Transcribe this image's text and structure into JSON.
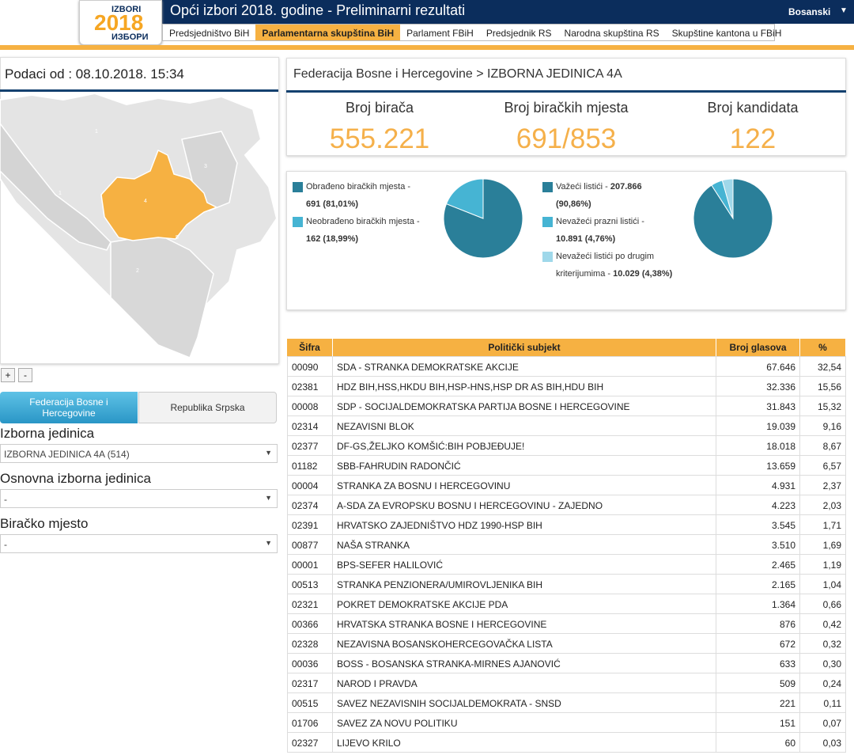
{
  "header": {
    "title": "Opći izbori 2018. godine - Preliminarni rezultati",
    "language": "Bosanski",
    "logo_top": "IZBORI",
    "logo_year": "2018",
    "logo_bottom": "ИЗБОРИ",
    "nav": [
      "Predsjedništvo BiH",
      "Parlamentarna skupština BiH",
      "Parlament FBiH",
      "Predsjednik RS",
      "Narodna skupština RS",
      "Skupštine kantona u FBiH"
    ],
    "active_nav": 1
  },
  "sidebar": {
    "date_label": "Podaci od : 08.10.2018. 15:34",
    "map_labels": [
      "1",
      "1",
      "3",
      "4",
      "5",
      "2"
    ],
    "zoom": [
      "+",
      "-"
    ],
    "entity_tabs": [
      "Federacija Bosne i Hercegovine",
      "Republika Srpska"
    ],
    "active_tab": 0,
    "filters": [
      {
        "label": "Izborna jedinica",
        "value": "IZBORNA JEDINICA 4A (514)"
      },
      {
        "label": "Osnovna izborna jedinica",
        "value": "-"
      },
      {
        "label": "Biračko mjesto",
        "value": "-"
      }
    ]
  },
  "region": {
    "breadcrumb": "Federacija Bosne i Hercegovine > IZBORNA JEDINICA 4A",
    "stats": [
      {
        "label": "Broj birača",
        "value": "555.221"
      },
      {
        "label": "Broj biračkih mjesta",
        "value": "691/853"
      },
      {
        "label": "Broj kandidata",
        "value": "122"
      }
    ]
  },
  "pies": [
    {
      "slices": [
        {
          "label": "Obrađeno biračkih mjesta - ",
          "value_text": "691 (81,01%)",
          "share": 81.01,
          "color": "#2a7f99"
        },
        {
          "label": "Neobrađeno biračkih mjesta - ",
          "value_text": "162 (18,99%)",
          "share": 18.99,
          "color": "#46b4d3"
        }
      ]
    },
    {
      "slices": [
        {
          "label": "Važeći listići - ",
          "value_text": "207.866 (90,86%)",
          "share": 90.86,
          "color": "#2a7f99"
        },
        {
          "label": "Nevažeći prazni listići - ",
          "value_text": "10.891 (4,76%)",
          "share": 4.76,
          "color": "#46b4d3"
        },
        {
          "label": "Nevažeći listići po drugim kriterijumima - ",
          "value_text": "10.029 (4,38%)",
          "share": 4.38,
          "color": "#9fd8ea"
        }
      ]
    }
  ],
  "table": {
    "header": [
      "Šifra",
      "Politički subjekt",
      "Broj glasova",
      "%"
    ],
    "rows": [
      [
        "00090",
        "SDA - STRANKA DEMOKRATSKE AKCIJE",
        "67.646",
        "32,54"
      ],
      [
        "02381",
        "HDZ BIH,HSS,HKDU BIH,HSP-HNS,HSP DR AS BIH,HDU BIH",
        "32.336",
        "15,56"
      ],
      [
        "00008",
        "SDP - SOCIJALDEMOKRATSKA PARTIJA BOSNE I HERCEGOVINE",
        "31.843",
        "15,32"
      ],
      [
        "02314",
        "NEZAVISNI BLOK",
        "19.039",
        "9,16"
      ],
      [
        "02377",
        "DF-GS,ŽELJKO KOMŠIĆ:BIH POBJEĐUJE!",
        "18.018",
        "8,67"
      ],
      [
        "01182",
        "SBB-FAHRUDIN RADONČIĆ",
        "13.659",
        "6,57"
      ],
      [
        "00004",
        "STRANKA ZA BOSNU I HERCEGOVINU",
        "4.931",
        "2,37"
      ],
      [
        "02374",
        "A-SDA ZA EVROPSKU BOSNU I HERCEGOVINU - ZAJEDNO",
        "4.223",
        "2,03"
      ],
      [
        "02391",
        "HRVATSKO ZAJEDNIŠTVO HDZ 1990-HSP BIH",
        "3.545",
        "1,71"
      ],
      [
        "00877",
        "NAŠA STRANKA",
        "3.510",
        "1,69"
      ],
      [
        "00001",
        "BPS-SEFER HALILOVIĆ",
        "2.465",
        "1,19"
      ],
      [
        "00513",
        "STRANKA PENZIONERA/UMIROVLJENIKA BIH",
        "2.165",
        "1,04"
      ],
      [
        "02321",
        "POKRET DEMOKRATSKE AKCIJE PDA",
        "1.364",
        "0,66"
      ],
      [
        "00366",
        "HRVATSKA STRANKA BOSNE I HERCEGOVINE",
        "876",
        "0,42"
      ],
      [
        "02328",
        "NEZAVISNA BOSANSKOHERCEGOVAČKA LISTA",
        "672",
        "0,32"
      ],
      [
        "00036",
        "BOSS - BOSANSKA STRANKA-MIRNES AJANOVIĆ",
        "633",
        "0,30"
      ],
      [
        "02317",
        "NAROD I PRAVDA",
        "509",
        "0,24"
      ],
      [
        "00515",
        "SAVEZ NEZAVISNIH SOCIJALDEMOKRATA - SNSD",
        "221",
        "0,11"
      ],
      [
        "01706",
        "SAVEZ ZA NOVU POLITIKU",
        "151",
        "0,07"
      ],
      [
        "02327",
        "LIJEVO KRILO",
        "60",
        "0,03"
      ]
    ]
  }
}
